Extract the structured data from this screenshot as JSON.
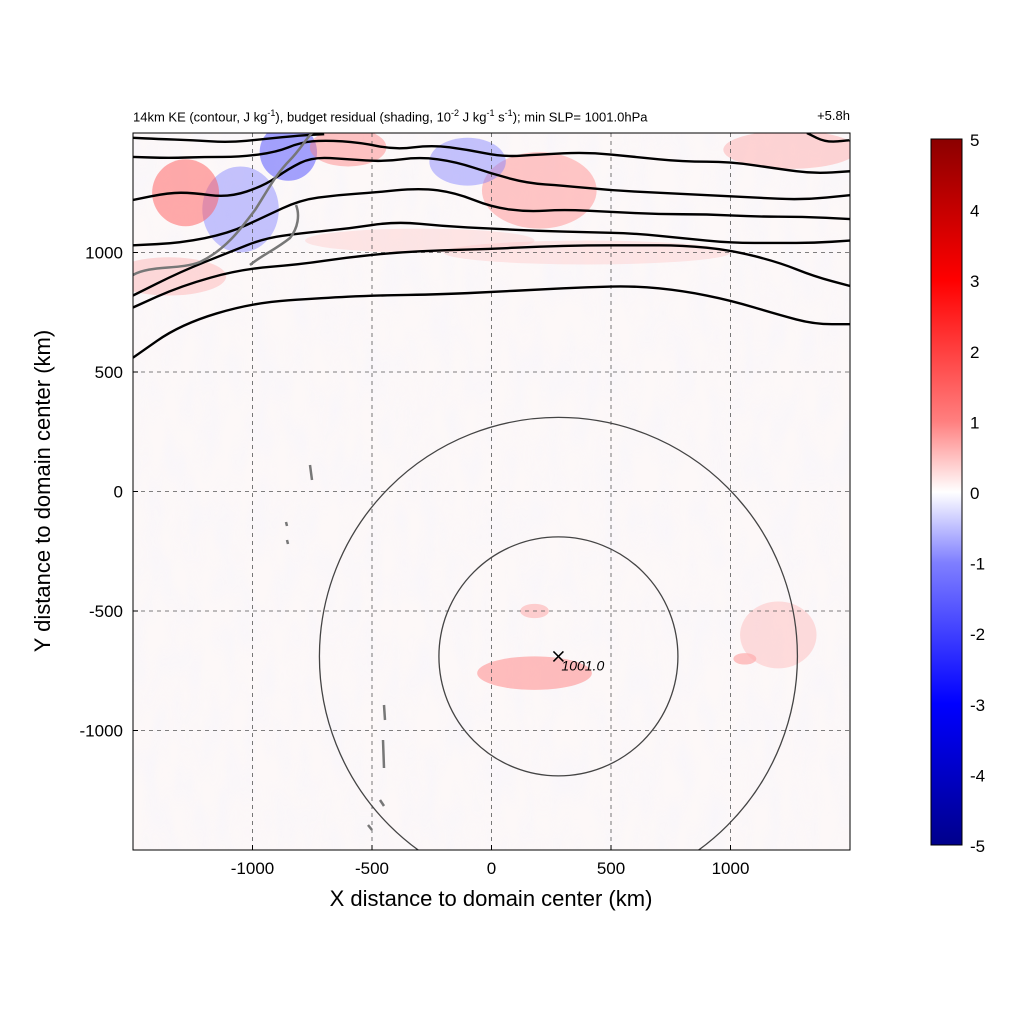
{
  "chart_data": {
    "type": "heatmap",
    "title_parts": {
      "p1": "14km KE (contour, J kg",
      "s1": "-1",
      "p2": "), budget residual (shading, 10",
      "s2": "-2",
      "p3": " J kg",
      "s3": "-1",
      "p4": " s",
      "s4": "-1",
      "p5": "); min SLP= 1001.0hPa"
    },
    "time_label": "+5.8h",
    "xlabel": "X distance to domain center (km)",
    "ylabel": "Y distance to domain center (km)",
    "xlim": [
      -1500,
      1500
    ],
    "ylim": [
      -1500,
      1500
    ],
    "xticks": [
      -1000,
      -500,
      0,
      500,
      1000
    ],
    "yticks": [
      1000,
      500,
      0,
      -500,
      -1000
    ],
    "grid": true,
    "colorbar": {
      "min": -5,
      "max": 5,
      "ticks": [
        5,
        4,
        3,
        2,
        1,
        0,
        -1,
        -2,
        -3,
        -4,
        -5
      ],
      "colors": [
        "#00008b",
        "#0000ff",
        "#7f7fff",
        "#ffffff",
        "#ff7f7f",
        "#ff0000",
        "#8b0000"
      ]
    },
    "storm_center": {
      "x": 280,
      "y": -690,
      "label": "1001.0"
    },
    "range_circles_km": [
      500,
      1000
    ],
    "ke_contours": [
      [
        [
          -1500,
          560
        ],
        [
          -1300,
          700
        ],
        [
          -1000,
          790
        ],
        [
          -700,
          810
        ],
        [
          -500,
          820
        ],
        [
          -200,
          825
        ],
        [
          0,
          835
        ],
        [
          200,
          845
        ],
        [
          400,
          855
        ],
        [
          600,
          860
        ],
        [
          800,
          840
        ],
        [
          1000,
          800
        ],
        [
          1200,
          740
        ],
        [
          1350,
          700
        ],
        [
          1500,
          700
        ]
      ],
      [
        [
          -1500,
          770
        ],
        [
          -1300,
          860
        ],
        [
          -1050,
          930
        ],
        [
          -800,
          950
        ],
        [
          -600,
          980
        ],
        [
          -400,
          1000
        ],
        [
          -200,
          1010
        ],
        [
          0,
          1015
        ],
        [
          200,
          1025
        ],
        [
          400,
          1030
        ],
        [
          600,
          1030
        ],
        [
          800,
          1030
        ],
        [
          1000,
          1010
        ],
        [
          1200,
          960
        ],
        [
          1350,
          900
        ],
        [
          1500,
          860
        ]
      ],
      [
        [
          -1500,
          820
        ],
        [
          -1300,
          920
        ],
        [
          -1100,
          1000
        ],
        [
          -950,
          1060
        ],
        [
          -800,
          1080
        ],
        [
          -600,
          1100
        ],
        [
          -400,
          1130
        ],
        [
          -200,
          1110
        ],
        [
          0,
          1100
        ],
        [
          200,
          1090
        ],
        [
          400,
          1085
        ],
        [
          600,
          1080
        ],
        [
          800,
          1060
        ],
        [
          1000,
          1040
        ],
        [
          1200,
          1040
        ],
        [
          1350,
          1040
        ],
        [
          1500,
          1050
        ]
      ],
      [
        [
          -1500,
          1030
        ],
        [
          -1300,
          1040
        ],
        [
          -1100,
          1080
        ],
        [
          -950,
          1150
        ],
        [
          -800,
          1220
        ],
        [
          -650,
          1240
        ],
        [
          -500,
          1250
        ],
        [
          -300,
          1270
        ],
        [
          -150,
          1250
        ],
        [
          0,
          1190
        ],
        [
          150,
          1170
        ],
        [
          300,
          1180
        ],
        [
          500,
          1170
        ],
        [
          700,
          1160
        ],
        [
          900,
          1160
        ],
        [
          1100,
          1150
        ],
        [
          1300,
          1150
        ],
        [
          1500,
          1140
        ]
      ],
      [
        [
          -1500,
          1220
        ],
        [
          -1350,
          1250
        ],
        [
          -1250,
          1250
        ],
        [
          -1100,
          1230
        ],
        [
          -950,
          1280
        ],
        [
          -850,
          1350
        ],
        [
          -750,
          1400
        ],
        [
          -600,
          1390
        ],
        [
          -450,
          1380
        ],
        [
          -300,
          1400
        ],
        [
          -150,
          1380
        ],
        [
          0,
          1330
        ],
        [
          150,
          1290
        ],
        [
          300,
          1280
        ],
        [
          500,
          1260
        ],
        [
          700,
          1250
        ],
        [
          900,
          1240
        ],
        [
          1100,
          1230
        ],
        [
          1300,
          1220
        ],
        [
          1500,
          1240
        ]
      ],
      [
        [
          -1500,
          1400
        ],
        [
          -1350,
          1395
        ],
        [
          -1200,
          1400
        ],
        [
          -1050,
          1400
        ],
        [
          -900,
          1420
        ],
        [
          -800,
          1460
        ],
        [
          -700,
          1470
        ],
        [
          -550,
          1460
        ],
        [
          -400,
          1430
        ],
        [
          -250,
          1450
        ],
        [
          -100,
          1430
        ],
        [
          50,
          1400
        ],
        [
          200,
          1410
        ],
        [
          400,
          1420
        ],
        [
          600,
          1400
        ],
        [
          800,
          1380
        ],
        [
          1000,
          1380
        ],
        [
          1200,
          1350
        ],
        [
          1350,
          1330
        ],
        [
          1500,
          1340
        ]
      ],
      [
        [
          -1500,
          1480
        ],
        [
          -1400,
          1475
        ],
        [
          -1250,
          1470
        ],
        [
          -1100,
          1460
        ],
        [
          -950,
          1475
        ],
        [
          -800,
          1490
        ],
        [
          -700,
          1495
        ]
      ],
      [
        [
          1320,
          1500
        ],
        [
          1400,
          1460
        ],
        [
          1500,
          1470
        ]
      ]
    ]
  }
}
